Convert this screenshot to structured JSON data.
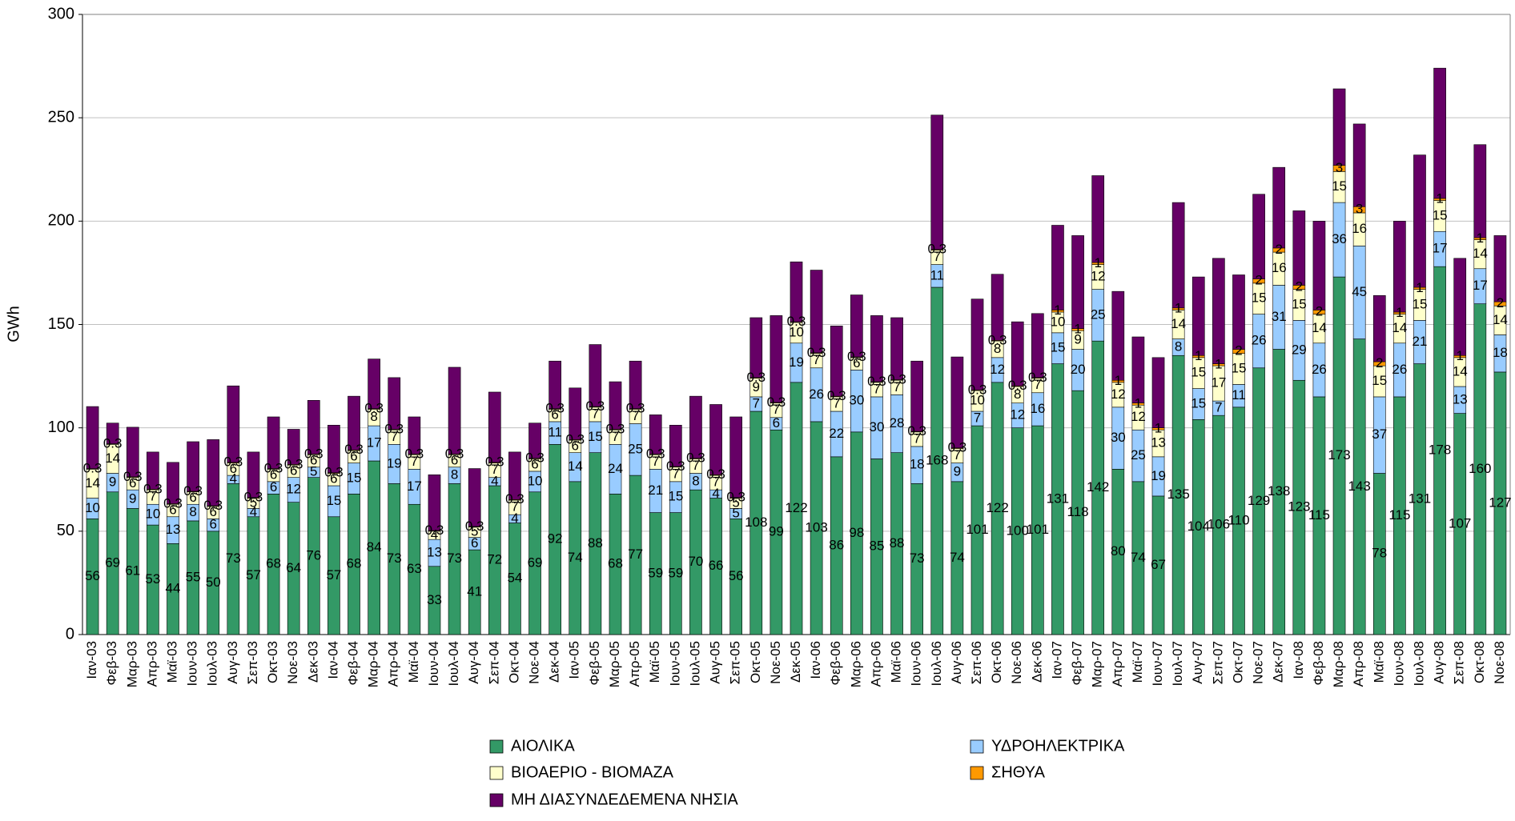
{
  "chart_data": {
    "type": "stacked_bar",
    "y_label": "GWh",
    "categories": [
      "Ιαν-03",
      "Φεβ-03",
      "Μαρ-03",
      "Απρ-03",
      "Μαϊ-03",
      "Ιουν-03",
      "Ιουλ-03",
      "Αυγ-03",
      "Σεπ-03",
      "Οκτ-03",
      "Νοε-03",
      "Δεκ-03",
      "Ιαν-04",
      "Φεβ-04",
      "Μαρ-04",
      "Απρ-04",
      "Μαϊ-04",
      "Ιουν-04",
      "Ιουλ-04",
      "Αυγ-04",
      "Σεπ-04",
      "Οκτ-04",
      "Νοε-04",
      "Δεκ-04",
      "Ιαν-05",
      "Φεβ-05",
      "Μαρ-05",
      "Απρ-05",
      "Μαϊ-05",
      "Ιουν-05",
      "Ιουλ-05",
      "Αυγ-05",
      "Σεπ-05",
      "Οκτ-05",
      "Νοε-05",
      "Δεκ-05",
      "Ιαν-06",
      "Φεβ-06",
      "Μαρ-06",
      "Απρ-06",
      "Μαϊ-06",
      "Ιουν-06",
      "Ιουλ-06",
      "Αυγ-06",
      "Σεπ-06",
      "Οκτ-06",
      "Νοε-06",
      "Δεκ-06",
      "Ιαν-07",
      "Φεβ-07",
      "Μαρ-07",
      "Απρ-07",
      "Μαϊ-07",
      "Ιουν-07",
      "Ιουλ-07",
      "Αυγ-07",
      "Σεπ-07",
      "Οκτ-07",
      "Νοε-07",
      "Δεκ-07",
      "Ιαν-08",
      "Φεβ-08",
      "Μαρ-08",
      "Απρ-08",
      "Μαϊ-08",
      "Ιουν-08",
      "Ιουλ-08",
      "Αυγ-08",
      "Σεπ-08",
      "Οκτ-08",
      "Νοε-08"
    ],
    "series": [
      {
        "name": "ΑΙΟΛΙΚΑ",
        "color": "#339966",
        "labels": true,
        "values": [
          56,
          69,
          61,
          53,
          44,
          55,
          50,
          73,
          57,
          68,
          64,
          76,
          57,
          68,
          84,
          73,
          63,
          33,
          73,
          41,
          72,
          54,
          69,
          92,
          74,
          88,
          68,
          77,
          59,
          59,
          70,
          66,
          56,
          108,
          99,
          122,
          103,
          86,
          98,
          85,
          88,
          73,
          168,
          74,
          101,
          122,
          100,
          101,
          131,
          118,
          142,
          80,
          74,
          67,
          135,
          104,
          106,
          110,
          129,
          138,
          123,
          115,
          173,
          143,
          78,
          115,
          131,
          178,
          107,
          160,
          127
        ]
      },
      {
        "name": "ΥΔΡΟΗΛΕΚΤΡΙΚΑ",
        "color": "#99ccff",
        "labels": true,
        "values": [
          10,
          9,
          9,
          10,
          13,
          8,
          6,
          4,
          4,
          6,
          12,
          5,
          15,
          15,
          17,
          19,
          17,
          13,
          8,
          6,
          4,
          4,
          10,
          11,
          14,
          15,
          24,
          25,
          21,
          15,
          8,
          4,
          5,
          7,
          6,
          19,
          26,
          22,
          30,
          30,
          28,
          18,
          11,
          9,
          7,
          12,
          12,
          16,
          15,
          20,
          25,
          30,
          25,
          19,
          8,
          15,
          7,
          11,
          26,
          31,
          29,
          26,
          36,
          45,
          37,
          26,
          21,
          17,
          13,
          17,
          18
        ]
      },
      {
        "name": "ΒΙΟΑΕΡΙΟ - ΒΙΟΜΑΖΑ",
        "color": "#ffffcc",
        "labels": true,
        "values": [
          14,
          14,
          6,
          7,
          6,
          6,
          6,
          6,
          5,
          6,
          6,
          6,
          6,
          6,
          8,
          7,
          7,
          4,
          6,
          5,
          7,
          7,
          6,
          6,
          6,
          7,
          7,
          7,
          7,
          7,
          7,
          7,
          5,
          9,
          7,
          10,
          7,
          7,
          6,
          7,
          7,
          7,
          7,
          7,
          10,
          8,
          8,
          7,
          10,
          9,
          12,
          12,
          12,
          13,
          14,
          15,
          17,
          15,
          15,
          16,
          15,
          14,
          15,
          16,
          15,
          14,
          15,
          15,
          14,
          14,
          14
        ]
      },
      {
        "name": "ΣΗΘΥΑ",
        "color": "#ff9900",
        "labels": true,
        "values": [
          0.3,
          0.3,
          0.3,
          0.3,
          0.3,
          0.3,
          0.3,
          0.3,
          0.3,
          0.3,
          0.3,
          0.3,
          0.3,
          0.3,
          0.3,
          0.3,
          0.3,
          0.3,
          0.3,
          0.3,
          0.3,
          0.3,
          0.3,
          0.3,
          0.3,
          0.3,
          0.3,
          0.3,
          0.3,
          0.3,
          0.3,
          0.3,
          0.3,
          0.3,
          0.3,
          0.3,
          0.3,
          0.3,
          0.3,
          0.3,
          0.3,
          0.3,
          0.3,
          0.3,
          0.3,
          0.3,
          0.3,
          0.3,
          1,
          1,
          1,
          1,
          1,
          1,
          1,
          1,
          1,
          2,
          2,
          2,
          2,
          2,
          3,
          3,
          2,
          1,
          1,
          1,
          1,
          1,
          2
        ]
      },
      {
        "name": "ΜΗ ΔΙΑΣΥΝΔΕΔΕΜΕΝΑ ΝΗΣΙΑ",
        "color": "#660066",
        "labels": false,
        "values": [
          30,
          10,
          24,
          18,
          20,
          24,
          32,
          37,
          22,
          25,
          17,
          26,
          23,
          26,
          24,
          25,
          18,
          27,
          42,
          28,
          34,
          23,
          17,
          23,
          25,
          30,
          23,
          23,
          19,
          20,
          30,
          34,
          39,
          29,
          42,
          29,
          40,
          34,
          30,
          32,
          30,
          34,
          65,
          44,
          44,
          32,
          31,
          31,
          41,
          45,
          42,
          43,
          32,
          34,
          51,
          38,
          51,
          36,
          41,
          39,
          36,
          43,
          37,
          40,
          32,
          44,
          64,
          63,
          47,
          45,
          32
        ]
      }
    ],
    "ylim": [
      0,
      300
    ],
    "yticks": [
      0,
      50,
      100,
      150,
      200,
      250,
      300
    ],
    "grid": true
  }
}
